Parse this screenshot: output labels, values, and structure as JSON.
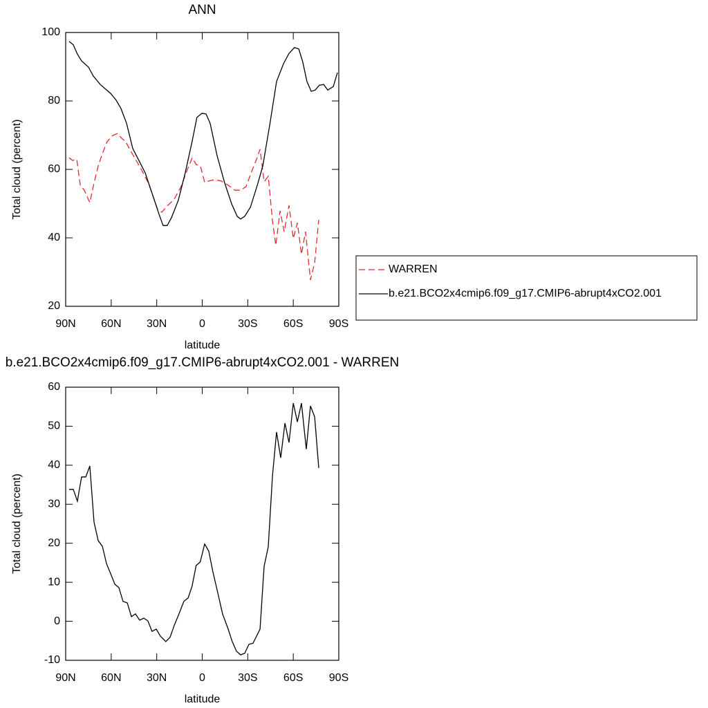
{
  "chart_data": [
    {
      "type": "line",
      "title": "ANN",
      "xlabel": "latitude",
      "ylabel": "Total cloud (percent)",
      "xlim": [
        90,
        -90
      ],
      "ylim": [
        20,
        100
      ],
      "xticks": [
        {
          "value": 90,
          "label": "90N"
        },
        {
          "value": 60,
          "label": "60N"
        },
        {
          "value": 30,
          "label": "30N"
        },
        0,
        {
          "value": -30,
          "label": "30S"
        },
        {
          "value": -60,
          "label": "60S"
        },
        {
          "value": -90,
          "label": "90S"
        }
      ],
      "yticks": [
        20,
        40,
        60,
        80,
        100
      ],
      "legend": "right",
      "series": [
        {
          "name": "WARREN",
          "color": "#e8262b",
          "line_style": "dashed",
          "x": [
            87.7,
            85.4,
            82.7,
            80.4,
            77.7,
            74.1,
            71.3,
            68.6,
            65.8,
            62.7,
            59.0,
            55.8,
            53.1,
            50.4,
            47.6,
            44.0,
            39.4,
            35.3,
            32.2,
            29.4,
            26.7,
            23.1,
            18.5,
            13.9,
            10.3,
            6.6,
            3.9,
            1.2,
            -1.6,
            -4.3,
            -8.0,
            -12.5,
            -17.1,
            -21.6,
            -25.3,
            -28.9,
            -32.6,
            -36.2,
            -38.1,
            -40.8,
            -43.5,
            -46.3,
            -48.5,
            -51.3,
            -54.0,
            -57.2,
            -60.0,
            -62.7,
            -65.4,
            -68.1,
            -71.3,
            -74.1,
            -76.8
          ],
          "values": [
            63.4,
            62.6,
            63,
            55.4,
            53.9,
            50.3,
            56,
            61,
            64.6,
            68.1,
            69.9,
            70.5,
            69.1,
            68.1,
            65.7,
            63,
            59.4,
            55.8,
            51.9,
            48.3,
            47.5,
            49.3,
            51.3,
            55,
            59.4,
            63.4,
            61.4,
            61,
            56.2,
            56.6,
            57,
            56.6,
            55.4,
            53.9,
            53.9,
            55,
            59.4,
            63.4,
            65.9,
            56.4,
            58,
            44.9,
            37.8,
            47.9,
            41.8,
            49.5,
            39.8,
            44.4,
            35.2,
            41.8,
            27.7,
            32.7,
            45.3
          ]
        },
        {
          "name": "b.e21.BCO2x4cmip6.f09_g17.CMIP6-abrupt4xCO2.001",
          "color": "#000000",
          "line_style": "solid",
          "x": [
            87.7,
            85.0,
            82.3,
            79.5,
            75.0,
            71.8,
            67.2,
            60.4,
            56.7,
            53.6,
            49.9,
            45.8,
            42.2,
            37.6,
            32.2,
            28.5,
            25.8,
            23.1,
            20.3,
            15.8,
            11.2,
            6.7,
            3.5,
            0.2,
            -2.5,
            -5.2,
            -9.8,
            -14.8,
            -19.4,
            -23.0,
            -25.3,
            -28.0,
            -31.7,
            -36.3,
            -39.9,
            -44.5,
            -49.0,
            -53.6,
            -57.2,
            -60.8,
            -63.6,
            -66.3,
            -69.0,
            -71.8,
            -74.5,
            -77.2,
            -80.0,
            -82.7,
            -86.4,
            -89.1
          ],
          "values": [
            97.4,
            96.4,
            93.7,
            91.7,
            89.9,
            87.3,
            84.8,
            82.2,
            80.2,
            77.8,
            73.5,
            66.1,
            63,
            59,
            51.9,
            46.9,
            43.6,
            43.6,
            45.9,
            50.9,
            59,
            68.1,
            75.2,
            76.4,
            76.2,
            73.5,
            64,
            56,
            49.9,
            46.3,
            45.5,
            46.3,
            48.9,
            55.4,
            61,
            73.1,
            85.7,
            90.9,
            93.9,
            95.6,
            95.2,
            91.3,
            85.7,
            82.8,
            83.2,
            84.6,
            84.8,
            83.2,
            84.2,
            88.3
          ]
        }
      ]
    },
    {
      "type": "line",
      "title": "b.e21.BCO2x4cmip6.f09_g17.CMIP6-abrupt4xCO2.001 - WARREN",
      "xlabel": "latitude",
      "ylabel": "Total cloud (percent)",
      "xlim": [
        90,
        -90
      ],
      "ylim": [
        -10,
        60
      ],
      "xticks": [
        {
          "value": 90,
          "label": "90N"
        },
        {
          "value": 60,
          "label": "60N"
        },
        {
          "value": 30,
          "label": "30N"
        },
        0,
        {
          "value": -30,
          "label": "30S"
        },
        {
          "value": -60,
          "label": "60S"
        },
        {
          "value": -90,
          "label": "90S"
        }
      ],
      "yticks": [
        -10,
        0,
        10,
        20,
        30,
        40,
        50,
        60
      ],
      "color": "#000000",
      "x": [
        87.7,
        85.0,
        82.3,
        79.5,
        76.8,
        74.1,
        71.3,
        68.6,
        65.8,
        63.1,
        60.4,
        57.6,
        54.9,
        52.2,
        49.4,
        46.7,
        44.0,
        41.3,
        38.5,
        35.8,
        33.1,
        30.3,
        27.6,
        24.0,
        21.2,
        18.5,
        15.7,
        12.1,
        9.3,
        6.7,
        4.0,
        1.3,
        -1.6,
        -4.3,
        -7.0,
        -10.7,
        -13.4,
        -17.1,
        -19.8,
        -22.6,
        -25.3,
        -28.0,
        -30.8,
        -33.5,
        -38.1,
        -40.8,
        -43.5,
        -46.3,
        -49.0,
        -51.7,
        -54.5,
        -57.2,
        -60.0,
        -62.7,
        -65.4,
        -68.6,
        -71.3,
        -74.1,
        -76.8
      ],
      "values": [
        33.8,
        33.8,
        30.8,
        37,
        37,
        39.8,
        25.4,
        20.7,
        19.2,
        14.8,
        12.2,
        9.5,
        8.6,
        5.1,
        4.7,
        1.2,
        1.9,
        0.3,
        0.8,
        0.1,
        -2.6,
        -2,
        -3.8,
        -5.2,
        -4.1,
        -1.1,
        1.5,
        5.1,
        6,
        9,
        14.3,
        15.2,
        19.8,
        18,
        12.7,
        6.5,
        1.9,
        -2,
        -5.2,
        -7.7,
        -8.6,
        -8.2,
        -5.9,
        -5.6,
        -2,
        14.1,
        19.1,
        37.3,
        48.5,
        41.9,
        50.8,
        45.8,
        55.9,
        51.1,
        55.9,
        44.1,
        55.2,
        52.4,
        39.3
      ]
    }
  ]
}
